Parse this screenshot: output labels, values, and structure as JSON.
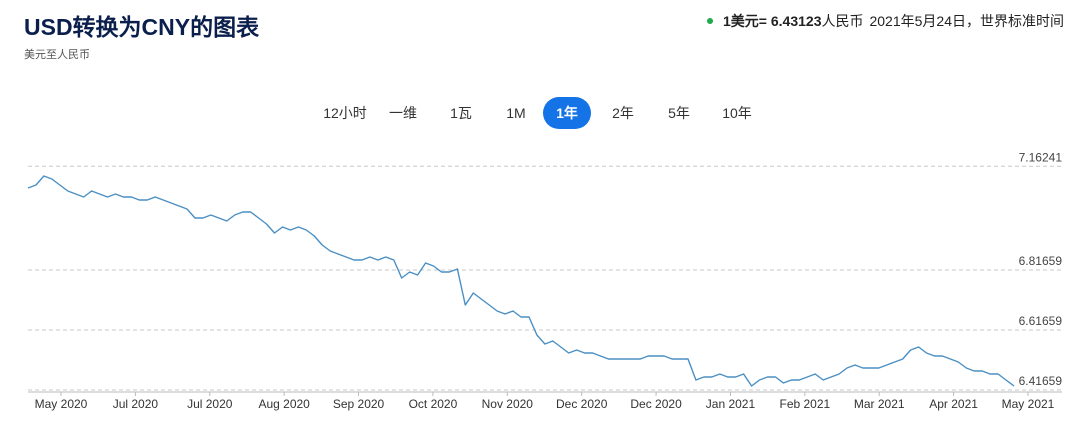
{
  "header": {
    "title": "USD转换为CNY的图表",
    "subtitle": "美元至人民币",
    "rate_prefix": "1美元= ",
    "rate_value": "6.43123",
    "rate_suffix": "人民币",
    "rate_time": "2021年5月24日，世界标准时间",
    "live_dot_color": "#1dab4c"
  },
  "tabs": [
    {
      "label": "12小时",
      "active": false
    },
    {
      "label": "一维",
      "active": false
    },
    {
      "label": "1瓦",
      "active": false
    },
    {
      "label": "1M",
      "active": false
    },
    {
      "label": "1年",
      "active": true
    },
    {
      "label": "2年",
      "active": false
    },
    {
      "label": "5年",
      "active": false
    },
    {
      "label": "10年",
      "active": false
    }
  ],
  "chart_data": {
    "type": "line",
    "title": "",
    "xlabel": "",
    "ylabel": "",
    "line_color": "#4a8fc4",
    "grid": "dashed horizontal",
    "ylim": [
      6.41,
      7.2
    ],
    "y_ticks": [
      7.16241,
      6.81659,
      6.61659,
      6.41659
    ],
    "y_tick_labels": [
      "7.16241",
      "6.81659",
      "6.61659",
      "6.41659"
    ],
    "x_tick_labels": [
      "May 2020",
      "Jul 2020",
      "Jul 2020",
      "Aug 2020",
      "Sep 2020",
      "Oct 2020",
      "Nov 2020",
      "Dec 2020",
      "Dec 2020",
      "Jan 2021",
      "Feb 2021",
      "Mar 2021",
      "Apr 2021",
      "May 2021"
    ],
    "series": [
      {
        "values": [
          7.09,
          7.1,
          7.13,
          7.12,
          7.1,
          7.08,
          7.07,
          7.06,
          7.08,
          7.07,
          7.06,
          7.07,
          7.06,
          7.06,
          7.05,
          7.05,
          7.06,
          7.05,
          7.04,
          7.03,
          7.02,
          6.99,
          6.99,
          7.0,
          6.99,
          6.98,
          7.0,
          7.01,
          7.01,
          6.99,
          6.97,
          6.94,
          6.96,
          6.95,
          6.96,
          6.95,
          6.93,
          6.9,
          6.88,
          6.87,
          6.86,
          6.85,
          6.85,
          6.86,
          6.85,
          6.86,
          6.85,
          6.79,
          6.81,
          6.8,
          6.84,
          6.83,
          6.81,
          6.81,
          6.82,
          6.7,
          6.74,
          6.72,
          6.7,
          6.68,
          6.67,
          6.68,
          6.66,
          6.66,
          6.6,
          6.57,
          6.58,
          6.56,
          6.54,
          6.55,
          6.54,
          6.54,
          6.53,
          6.52,
          6.52,
          6.52,
          6.52,
          6.52,
          6.53,
          6.53,
          6.53,
          6.52,
          6.52,
          6.52,
          6.45,
          6.46,
          6.46,
          6.47,
          6.46,
          6.46,
          6.47,
          6.43,
          6.45,
          6.46,
          6.46,
          6.44,
          6.45,
          6.45,
          6.46,
          6.47,
          6.45,
          6.46,
          6.47,
          6.49,
          6.5,
          6.49,
          6.49,
          6.49,
          6.5,
          6.51,
          6.52,
          6.55,
          6.56,
          6.54,
          6.53,
          6.53,
          6.52,
          6.51,
          6.49,
          6.48,
          6.48,
          6.47,
          6.47,
          6.45,
          6.43
        ]
      }
    ]
  }
}
